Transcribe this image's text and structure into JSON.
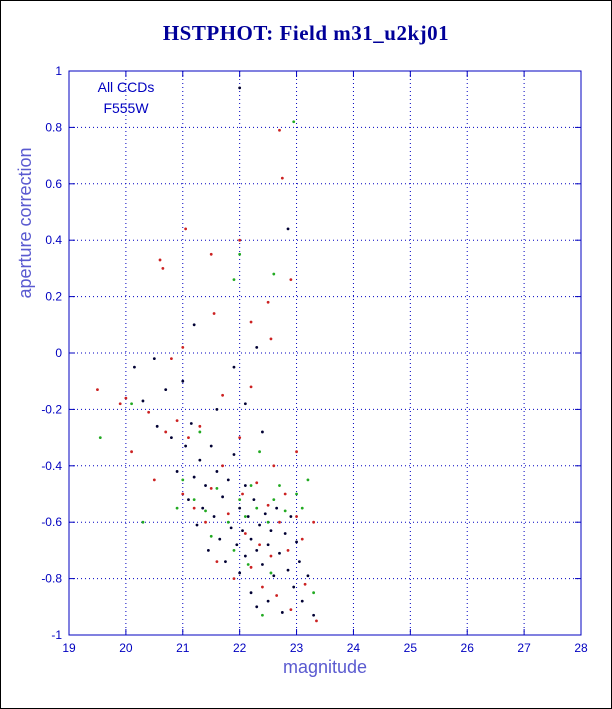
{
  "title": "HSTPHOT: Field m31_u2kj01",
  "legend": {
    "line1": "All CCDs",
    "line2": "F555W"
  },
  "colors": {
    "frame": "#0000c0",
    "grid": "#0000c0",
    "tick_text": "#0000c0",
    "axis_label_text": "#5a5ad0",
    "title_text": "#000099"
  },
  "chart_data": {
    "type": "scatter",
    "title": "HSTPHOT: Field m31_u2kj01",
    "xlabel": "magnitude",
    "ylabel": "aperture correction",
    "xlim": [
      19,
      28
    ],
    "ylim": [
      -1,
      1
    ],
    "grid": true,
    "legend_position": "top-left-inside",
    "annotations": [
      "All CCDs",
      "F555W"
    ],
    "xticks": [
      19,
      20,
      21,
      22,
      23,
      24,
      25,
      26,
      27,
      28
    ],
    "xticklabels": [
      "19",
      "20",
      "21",
      "22",
      "23",
      "24",
      "25",
      "26",
      "27",
      "28"
    ],
    "yticks": [
      -1,
      -0.8,
      -0.6,
      -0.4,
      -0.2,
      0,
      0.2,
      0.4,
      0.6,
      0.8,
      1
    ],
    "yticklabels": [
      "-1",
      "-0.8",
      "-0.6",
      "-0.4",
      "-0.2",
      "0",
      "0.2",
      "0.4",
      "0.6",
      "0.8",
      "1"
    ],
    "series": [
      {
        "name": "ccd-black",
        "color": "#000033",
        "points": [
          [
            22.0,
            0.94
          ],
          [
            22.85,
            0.44
          ],
          [
            20.15,
            -0.05
          ],
          [
            20.3,
            -0.17
          ],
          [
            20.5,
            -0.02
          ],
          [
            20.55,
            -0.26
          ],
          [
            20.7,
            -0.13
          ],
          [
            20.8,
            -0.3
          ],
          [
            20.9,
            -0.42
          ],
          [
            21.0,
            -0.1
          ],
          [
            21.05,
            -0.33
          ],
          [
            21.1,
            -0.52
          ],
          [
            21.15,
            -0.25
          ],
          [
            21.2,
            0.1
          ],
          [
            21.2,
            -0.44
          ],
          [
            21.25,
            -0.61
          ],
          [
            21.3,
            -0.38
          ],
          [
            21.35,
            -0.55
          ],
          [
            21.4,
            -0.47
          ],
          [
            21.45,
            -0.7
          ],
          [
            21.5,
            -0.33
          ],
          [
            21.55,
            -0.58
          ],
          [
            21.6,
            -0.2
          ],
          [
            21.6,
            -0.42
          ],
          [
            21.65,
            -0.66
          ],
          [
            21.7,
            -0.51
          ],
          [
            21.75,
            -0.74
          ],
          [
            21.8,
            -0.45
          ],
          [
            21.85,
            -0.62
          ],
          [
            21.9,
            -0.05
          ],
          [
            21.9,
            -0.36
          ],
          [
            21.95,
            -0.68
          ],
          [
            22.0,
            -0.55
          ],
          [
            22.0,
            -0.78
          ],
          [
            22.05,
            -0.63
          ],
          [
            22.1,
            -0.18
          ],
          [
            22.1,
            -0.47
          ],
          [
            22.1,
            -0.72
          ],
          [
            22.15,
            -0.58
          ],
          [
            22.2,
            -0.66
          ],
          [
            22.2,
            -0.85
          ],
          [
            22.25,
            -0.52
          ],
          [
            22.3,
            0.02
          ],
          [
            22.3,
            -0.7
          ],
          [
            22.3,
            -0.9
          ],
          [
            22.35,
            -0.61
          ],
          [
            22.4,
            -0.28
          ],
          [
            22.4,
            -0.75
          ],
          [
            22.45,
            -0.57
          ],
          [
            22.5,
            -0.68
          ],
          [
            22.5,
            -0.88
          ],
          [
            22.55,
            -0.63
          ],
          [
            22.6,
            -0.79
          ],
          [
            22.65,
            -0.55
          ],
          [
            22.7,
            -0.71
          ],
          [
            22.75,
            -0.92
          ],
          [
            22.8,
            -0.64
          ],
          [
            22.85,
            -0.77
          ],
          [
            22.9,
            -0.58
          ],
          [
            22.95,
            -0.83
          ],
          [
            23.0,
            -0.67
          ],
          [
            23.05,
            -0.74
          ],
          [
            23.1,
            -0.88
          ],
          [
            23.2,
            -0.79
          ],
          [
            23.3,
            -0.93
          ]
        ]
      },
      {
        "name": "ccd-red",
        "color": "#cc2222",
        "points": [
          [
            22.7,
            0.79
          ],
          [
            22.75,
            0.62
          ],
          [
            21.05,
            0.44
          ],
          [
            20.6,
            0.33
          ],
          [
            20.65,
            0.3
          ],
          [
            21.5,
            0.35
          ],
          [
            21.55,
            0.14
          ],
          [
            22.0,
            0.4
          ],
          [
            22.2,
            0.11
          ],
          [
            22.5,
            0.18
          ],
          [
            22.55,
            0.05
          ],
          [
            22.9,
            0.26
          ],
          [
            19.5,
            -0.13
          ],
          [
            19.9,
            -0.18
          ],
          [
            20.0,
            -0.16
          ],
          [
            20.1,
            -0.35
          ],
          [
            20.4,
            -0.21
          ],
          [
            20.5,
            -0.45
          ],
          [
            20.7,
            -0.28
          ],
          [
            20.8,
            -0.02
          ],
          [
            20.9,
            -0.24
          ],
          [
            21.0,
            0.02
          ],
          [
            21.0,
            -0.5
          ],
          [
            21.1,
            -0.3
          ],
          [
            21.2,
            -0.55
          ],
          [
            21.3,
            -0.26
          ],
          [
            21.4,
            -0.6
          ],
          [
            21.5,
            -0.48
          ],
          [
            21.6,
            -0.74
          ],
          [
            21.7,
            -0.15
          ],
          [
            21.7,
            -0.4
          ],
          [
            21.8,
            -0.57
          ],
          [
            21.9,
            -0.8
          ],
          [
            22.0,
            -0.3
          ],
          [
            22.05,
            -0.5
          ],
          [
            22.1,
            -0.64
          ],
          [
            22.2,
            -0.12
          ],
          [
            22.2,
            -0.76
          ],
          [
            22.3,
            -0.46
          ],
          [
            22.35,
            -0.68
          ],
          [
            22.4,
            -0.83
          ],
          [
            22.5,
            -0.54
          ],
          [
            22.55,
            -0.72
          ],
          [
            22.6,
            -0.4
          ],
          [
            22.65,
            -0.86
          ],
          [
            22.7,
            -0.6
          ],
          [
            22.8,
            -0.5
          ],
          [
            22.85,
            -0.7
          ],
          [
            22.9,
            -0.91
          ],
          [
            23.0,
            -0.35
          ],
          [
            23.0,
            -0.58
          ],
          [
            23.1,
            -0.66
          ],
          [
            23.15,
            -0.82
          ],
          [
            23.3,
            -0.6
          ],
          [
            23.35,
            -0.95
          ]
        ]
      },
      {
        "name": "ccd-green",
        "color": "#22aa22",
        "points": [
          [
            19.55,
            -0.3
          ],
          [
            20.1,
            -0.18
          ],
          [
            20.3,
            -0.6
          ],
          [
            20.9,
            -0.55
          ],
          [
            21.0,
            -0.45
          ],
          [
            21.2,
            -0.52
          ],
          [
            21.3,
            -0.28
          ],
          [
            21.4,
            -0.56
          ],
          [
            21.5,
            -0.65
          ],
          [
            21.6,
            -0.48
          ],
          [
            21.8,
            -0.6
          ],
          [
            21.9,
            0.26
          ],
          [
            21.9,
            -0.7
          ],
          [
            22.0,
            0.35
          ],
          [
            22.0,
            -0.52
          ],
          [
            22.1,
            -0.58
          ],
          [
            22.15,
            -0.75
          ],
          [
            22.2,
            -0.47
          ],
          [
            22.3,
            -0.55
          ],
          [
            22.35,
            -0.35
          ],
          [
            22.4,
            -0.93
          ],
          [
            22.5,
            -0.6
          ],
          [
            22.55,
            -0.78
          ],
          [
            22.6,
            0.28
          ],
          [
            22.6,
            -0.52
          ],
          [
            22.7,
            -0.47
          ],
          [
            22.8,
            -0.56
          ],
          [
            22.95,
            0.82
          ],
          [
            23.0,
            -0.5
          ],
          [
            23.1,
            -0.55
          ],
          [
            23.2,
            -0.45
          ],
          [
            23.3,
            -0.85
          ]
        ]
      }
    ]
  }
}
